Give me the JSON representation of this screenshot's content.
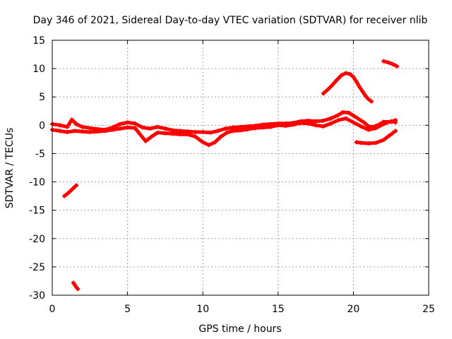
{
  "chart_data": {
    "type": "scatter",
    "title": "Day 346 of 2021, Sidereal Day-to-day VTEC variation (SDTVAR) for receiver nlib",
    "xlabel": "GPS time / hours",
    "ylabel": "SDTVAR / TECUs",
    "xlim": [
      0,
      25
    ],
    "ylim": [
      -30,
      15
    ],
    "xticks": [
      0,
      5,
      10,
      15,
      20,
      25
    ],
    "yticks": [
      15,
      10,
      5,
      0,
      -5,
      -10,
      -15,
      -20,
      -25,
      -30
    ],
    "grid": true,
    "marker": "+",
    "color": "#ff0000",
    "series": [
      {
        "name": "main-band-upper",
        "points": [
          [
            0.0,
            0.2
          ],
          [
            0.5,
            0.0
          ],
          [
            1.0,
            -0.3
          ],
          [
            1.3,
            1.0
          ],
          [
            1.6,
            0.2
          ],
          [
            2.0,
            -0.3
          ],
          [
            2.5,
            -0.5
          ],
          [
            3.0,
            -0.7
          ],
          [
            3.5,
            -0.8
          ],
          [
            4.0,
            -0.4
          ],
          [
            4.5,
            0.2
          ],
          [
            5.0,
            0.5
          ],
          [
            5.5,
            0.3
          ],
          [
            6.0,
            -0.4
          ],
          [
            6.5,
            -0.6
          ],
          [
            7.0,
            -0.3
          ],
          [
            7.5,
            -0.6
          ],
          [
            8.0,
            -0.9
          ],
          [
            8.5,
            -1.0
          ],
          [
            9.0,
            -1.1
          ],
          [
            9.5,
            -1.2
          ],
          [
            10.0,
            -1.2
          ],
          [
            10.5,
            -1.3
          ],
          [
            11.0,
            -1.0
          ],
          [
            11.5,
            -0.6
          ],
          [
            12.0,
            -0.4
          ],
          [
            12.5,
            -0.3
          ],
          [
            13.0,
            -0.2
          ],
          [
            13.5,
            -0.1
          ],
          [
            14.0,
            0.1
          ],
          [
            14.5,
            0.2
          ],
          [
            15.0,
            0.3
          ],
          [
            15.5,
            0.3
          ],
          [
            16.0,
            0.4
          ],
          [
            16.5,
            0.7
          ],
          [
            17.0,
            0.8
          ],
          [
            17.5,
            0.7
          ],
          [
            18.0,
            0.8
          ],
          [
            18.5,
            1.2
          ],
          [
            19.0,
            1.8
          ],
          [
            19.3,
            2.3
          ],
          [
            19.7,
            2.2
          ],
          [
            20.0,
            1.7
          ],
          [
            20.3,
            1.2
          ],
          [
            20.7,
            0.5
          ],
          [
            21.0,
            -0.2
          ],
          [
            21.3,
            -0.3
          ],
          [
            21.7,
            0.1
          ],
          [
            22.0,
            0.6
          ],
          [
            22.5,
            0.6
          ],
          [
            22.8,
            0.9
          ]
        ]
      },
      {
        "name": "main-band-lower",
        "points": [
          [
            0.0,
            -0.8
          ],
          [
            0.5,
            -1.0
          ],
          [
            1.0,
            -1.2
          ],
          [
            1.5,
            -1.0
          ],
          [
            2.0,
            -1.1
          ],
          [
            2.5,
            -1.2
          ],
          [
            3.0,
            -1.1
          ],
          [
            3.5,
            -1.0
          ],
          [
            4.0,
            -0.8
          ],
          [
            4.5,
            -0.6
          ],
          [
            5.0,
            -0.4
          ],
          [
            5.5,
            -0.5
          ],
          [
            5.8,
            -1.5
          ],
          [
            6.2,
            -2.8
          ],
          [
            6.6,
            -2.0
          ],
          [
            7.0,
            -1.3
          ],
          [
            7.5,
            -1.4
          ],
          [
            8.0,
            -1.5
          ],
          [
            8.5,
            -1.6
          ],
          [
            9.0,
            -1.6
          ],
          [
            9.5,
            -2.0
          ],
          [
            10.0,
            -3.0
          ],
          [
            10.4,
            -3.5
          ],
          [
            10.8,
            -3.0
          ],
          [
            11.2,
            -2.0
          ],
          [
            11.6,
            -1.3
          ],
          [
            12.0,
            -1.0
          ],
          [
            12.5,
            -0.9
          ],
          [
            13.0,
            -0.7
          ],
          [
            13.5,
            -0.5
          ],
          [
            14.0,
            -0.4
          ],
          [
            14.5,
            -0.3
          ],
          [
            15.0,
            0.0
          ],
          [
            15.5,
            -0.1
          ],
          [
            16.0,
            0.1
          ],
          [
            16.5,
            0.4
          ],
          [
            17.0,
            0.3
          ],
          [
            17.5,
            0.0
          ],
          [
            18.0,
            -0.2
          ],
          [
            18.5,
            0.3
          ],
          [
            19.0,
            0.9
          ],
          [
            19.5,
            1.2
          ],
          [
            20.0,
            0.5
          ],
          [
            20.5,
            -0.2
          ],
          [
            21.0,
            -0.8
          ],
          [
            21.5,
            -0.5
          ],
          [
            22.0,
            0.2
          ],
          [
            22.5,
            0.7
          ],
          [
            22.8,
            0.5
          ]
        ]
      },
      {
        "name": "low-arc",
        "points": [
          [
            20.2,
            -3.0
          ],
          [
            20.5,
            -3.1
          ],
          [
            21.0,
            -3.2
          ],
          [
            21.5,
            -3.1
          ],
          [
            22.0,
            -2.6
          ],
          [
            22.3,
            -2.0
          ],
          [
            22.6,
            -1.4
          ],
          [
            22.8,
            -1.0
          ]
        ]
      },
      {
        "name": "high-arc",
        "points": [
          [
            18.0,
            5.6
          ],
          [
            18.3,
            6.3
          ],
          [
            18.6,
            7.1
          ],
          [
            18.9,
            8.0
          ],
          [
            19.2,
            8.8
          ],
          [
            19.5,
            9.2
          ],
          [
            19.8,
            9.0
          ],
          [
            20.0,
            8.5
          ],
          [
            20.2,
            7.7
          ],
          [
            20.4,
            6.8
          ],
          [
            20.6,
            6.0
          ],
          [
            20.8,
            5.2
          ],
          [
            21.0,
            4.6
          ],
          [
            21.2,
            4.2
          ]
        ]
      },
      {
        "name": "top-right-segment",
        "points": [
          [
            22.0,
            11.3
          ],
          [
            22.3,
            11.1
          ],
          [
            22.6,
            10.8
          ],
          [
            22.9,
            10.4
          ]
        ]
      },
      {
        "name": "left-descending-segment",
        "points": [
          [
            0.8,
            -12.5
          ],
          [
            1.0,
            -12.1
          ],
          [
            1.2,
            -11.6
          ],
          [
            1.4,
            -11.1
          ],
          [
            1.6,
            -10.6
          ]
        ]
      },
      {
        "name": "bottom-segment",
        "points": [
          [
            1.4,
            -27.8
          ],
          [
            1.5,
            -28.2
          ],
          [
            1.6,
            -28.6
          ],
          [
            1.7,
            -28.9
          ]
        ]
      }
    ]
  }
}
